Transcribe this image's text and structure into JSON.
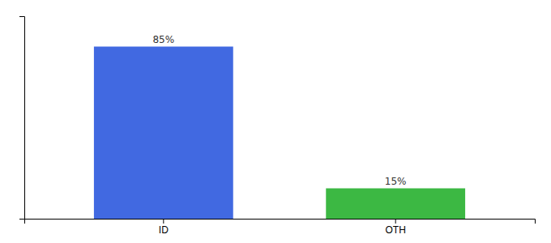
{
  "chart_data": {
    "type": "bar",
    "categories": [
      "ID",
      "OTH"
    ],
    "values": [
      85,
      15
    ],
    "value_labels": [
      "85%",
      "15%"
    ],
    "colors": [
      "#4169e1",
      "#3cb843"
    ],
    "ylim": [
      0,
      100
    ],
    "yticks": [],
    "grid": false,
    "data_labels": true,
    "tick_labels": "x"
  }
}
